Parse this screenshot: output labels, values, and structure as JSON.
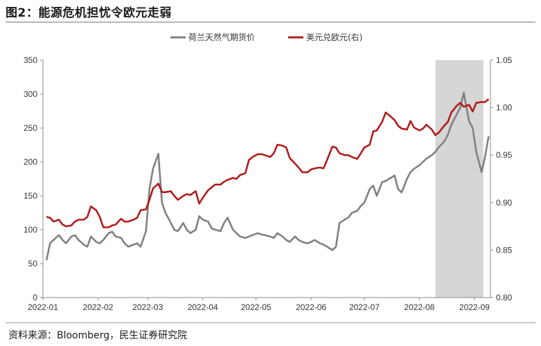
{
  "title": "图2：能源危机担忧令欧元走弱",
  "source": "资料来源：Bloomberg，民生证券研究院",
  "chart_data": {
    "type": "line",
    "x_tick_labels": [
      "2022-01",
      "2022-02",
      "2022-03",
      "2022-04",
      "2022-05",
      "2022-06",
      "2022-07",
      "2022-08",
      "2022-09"
    ],
    "y_left": {
      "range": [
        0,
        350
      ],
      "ticks": [
        0,
        50,
        100,
        150,
        200,
        250,
        300,
        350
      ]
    },
    "y_right": {
      "range": [
        0.8,
        1.05
      ],
      "ticks": [
        "0.80",
        "0.85",
        "0.90",
        "0.95",
        "1.00",
        "1.05"
      ]
    },
    "shaded_region": {
      "from": "2022-08-10",
      "to": "2022-09-06"
    },
    "legend_position": "top-center",
    "colors": {
      "gas": "#808080",
      "eurusd": "#b01c1c",
      "shade": "#d6d6d6"
    },
    "series": [
      {
        "name": "荷兰天然气期货价",
        "axis": "left",
        "points": [
          [
            "2022-01-03",
            55
          ],
          [
            "2022-01-05",
            80
          ],
          [
            "2022-01-07",
            85
          ],
          [
            "2022-01-10",
            92
          ],
          [
            "2022-01-12",
            85
          ],
          [
            "2022-01-14",
            80
          ],
          [
            "2022-01-17",
            90
          ],
          [
            "2022-01-19",
            92
          ],
          [
            "2022-01-21",
            85
          ],
          [
            "2022-01-24",
            78
          ],
          [
            "2022-01-26",
            75
          ],
          [
            "2022-01-28",
            90
          ],
          [
            "2022-01-31",
            82
          ],
          [
            "2022-02-02",
            80
          ],
          [
            "2022-02-04",
            85
          ],
          [
            "2022-02-07",
            95
          ],
          [
            "2022-02-09",
            97
          ],
          [
            "2022-02-11",
            90
          ],
          [
            "2022-02-14",
            88
          ],
          [
            "2022-02-16",
            80
          ],
          [
            "2022-02-18",
            75
          ],
          [
            "2022-02-21",
            78
          ],
          [
            "2022-02-23",
            80
          ],
          [
            "2022-02-25",
            75
          ],
          [
            "2022-02-28",
            98
          ],
          [
            "2022-03-02",
            160
          ],
          [
            "2022-03-04",
            190
          ],
          [
            "2022-03-07",
            212
          ],
          [
            "2022-03-09",
            140
          ],
          [
            "2022-03-11",
            125
          ],
          [
            "2022-03-14",
            110
          ],
          [
            "2022-03-16",
            100
          ],
          [
            "2022-03-18",
            98
          ],
          [
            "2022-03-21",
            110
          ],
          [
            "2022-03-23",
            100
          ],
          [
            "2022-03-25",
            95
          ],
          [
            "2022-03-28",
            100
          ],
          [
            "2022-03-30",
            120
          ],
          [
            "2022-04-01",
            115
          ],
          [
            "2022-04-04",
            112
          ],
          [
            "2022-04-06",
            102
          ],
          [
            "2022-04-08",
            100
          ],
          [
            "2022-04-11",
            98
          ],
          [
            "2022-04-13",
            110
          ],
          [
            "2022-04-15",
            118
          ],
          [
            "2022-04-18",
            100
          ],
          [
            "2022-04-20",
            95
          ],
          [
            "2022-04-22",
            90
          ],
          [
            "2022-04-25",
            88
          ],
          [
            "2022-04-27",
            90
          ],
          [
            "2022-04-29",
            92
          ],
          [
            "2022-05-02",
            95
          ],
          [
            "2022-05-04",
            93
          ],
          [
            "2022-05-06",
            92
          ],
          [
            "2022-05-09",
            90
          ],
          [
            "2022-05-11",
            88
          ],
          [
            "2022-05-13",
            95
          ],
          [
            "2022-05-16",
            90
          ],
          [
            "2022-05-18",
            85
          ],
          [
            "2022-05-20",
            82
          ],
          [
            "2022-05-23",
            90
          ],
          [
            "2022-05-25",
            85
          ],
          [
            "2022-05-27",
            82
          ],
          [
            "2022-05-30",
            80
          ],
          [
            "2022-06-01",
            82
          ],
          [
            "2022-06-03",
            85
          ],
          [
            "2022-06-06",
            80
          ],
          [
            "2022-06-08",
            78
          ],
          [
            "2022-06-10",
            75
          ],
          [
            "2022-06-13",
            70
          ],
          [
            "2022-06-15",
            75
          ],
          [
            "2022-06-17",
            110
          ],
          [
            "2022-06-20",
            115
          ],
          [
            "2022-06-22",
            118
          ],
          [
            "2022-06-24",
            125
          ],
          [
            "2022-06-27",
            128
          ],
          [
            "2022-06-29",
            135
          ],
          [
            "2022-07-01",
            140
          ],
          [
            "2022-07-04",
            160
          ],
          [
            "2022-07-06",
            165
          ],
          [
            "2022-07-08",
            150
          ],
          [
            "2022-07-11",
            170
          ],
          [
            "2022-07-13",
            172
          ],
          [
            "2022-07-15",
            175
          ],
          [
            "2022-07-18",
            180
          ],
          [
            "2022-07-20",
            160
          ],
          [
            "2022-07-22",
            155
          ],
          [
            "2022-07-25",
            175
          ],
          [
            "2022-07-27",
            185
          ],
          [
            "2022-07-29",
            190
          ],
          [
            "2022-08-01",
            195
          ],
          [
            "2022-08-03",
            200
          ],
          [
            "2022-08-05",
            205
          ],
          [
            "2022-08-08",
            210
          ],
          [
            "2022-08-10",
            215
          ],
          [
            "2022-08-12",
            222
          ],
          [
            "2022-08-15",
            230
          ],
          [
            "2022-08-17",
            240
          ],
          [
            "2022-08-19",
            255
          ],
          [
            "2022-08-22",
            270
          ],
          [
            "2022-08-24",
            280
          ],
          [
            "2022-08-26",
            302
          ],
          [
            "2022-08-29",
            260
          ],
          [
            "2022-08-31",
            250
          ],
          [
            "2022-09-02",
            215
          ],
          [
            "2022-09-05",
            185
          ],
          [
            "2022-09-07",
            208
          ],
          [
            "2022-09-09",
            238
          ]
        ]
      },
      {
        "name": "美元兑欧元(右)",
        "axis": "right",
        "points": [
          [
            "2022-01-03",
            0.885
          ],
          [
            "2022-01-05",
            0.884
          ],
          [
            "2022-01-07",
            0.88
          ],
          [
            "2022-01-10",
            0.882
          ],
          [
            "2022-01-12",
            0.877
          ],
          [
            "2022-01-14",
            0.875
          ],
          [
            "2022-01-17",
            0.876
          ],
          [
            "2022-01-19",
            0.88
          ],
          [
            "2022-01-21",
            0.882
          ],
          [
            "2022-01-24",
            0.882
          ],
          [
            "2022-01-26",
            0.885
          ],
          [
            "2022-01-28",
            0.896
          ],
          [
            "2022-01-31",
            0.892
          ],
          [
            "2022-02-02",
            0.885
          ],
          [
            "2022-02-04",
            0.874
          ],
          [
            "2022-02-07",
            0.874
          ],
          [
            "2022-02-09",
            0.876
          ],
          [
            "2022-02-11",
            0.877
          ],
          [
            "2022-02-14",
            0.883
          ],
          [
            "2022-02-16",
            0.88
          ],
          [
            "2022-02-18",
            0.88
          ],
          [
            "2022-02-21",
            0.882
          ],
          [
            "2022-02-23",
            0.884
          ],
          [
            "2022-02-25",
            0.892
          ],
          [
            "2022-02-28",
            0.893
          ],
          [
            "2022-03-02",
            0.903
          ],
          [
            "2022-03-04",
            0.915
          ],
          [
            "2022-03-07",
            0.92
          ],
          [
            "2022-03-09",
            0.911
          ],
          [
            "2022-03-11",
            0.911
          ],
          [
            "2022-03-14",
            0.912
          ],
          [
            "2022-03-16",
            0.907
          ],
          [
            "2022-03-18",
            0.903
          ],
          [
            "2022-03-21",
            0.907
          ],
          [
            "2022-03-23",
            0.909
          ],
          [
            "2022-03-25",
            0.908
          ],
          [
            "2022-03-28",
            0.912
          ],
          [
            "2022-03-30",
            0.899
          ],
          [
            "2022-04-01",
            0.905
          ],
          [
            "2022-04-04",
            0.913
          ],
          [
            "2022-04-06",
            0.916
          ],
          [
            "2022-04-08",
            0.919
          ],
          [
            "2022-04-11",
            0.919
          ],
          [
            "2022-04-13",
            0.922
          ],
          [
            "2022-04-15",
            0.924
          ],
          [
            "2022-04-18",
            0.926
          ],
          [
            "2022-04-20",
            0.925
          ],
          [
            "2022-04-22",
            0.929
          ],
          [
            "2022-04-25",
            0.931
          ],
          [
            "2022-04-27",
            0.945
          ],
          [
            "2022-04-29",
            0.948
          ],
          [
            "2022-05-02",
            0.951
          ],
          [
            "2022-05-04",
            0.951
          ],
          [
            "2022-05-06",
            0.95
          ],
          [
            "2022-05-09",
            0.948
          ],
          [
            "2022-05-11",
            0.952
          ],
          [
            "2022-05-13",
            0.961
          ],
          [
            "2022-05-16",
            0.96
          ],
          [
            "2022-05-18",
            0.958
          ],
          [
            "2022-05-20",
            0.947
          ],
          [
            "2022-05-23",
            0.941
          ],
          [
            "2022-05-25",
            0.937
          ],
          [
            "2022-05-27",
            0.932
          ],
          [
            "2022-05-30",
            0.932
          ],
          [
            "2022-06-01",
            0.935
          ],
          [
            "2022-06-03",
            0.936
          ],
          [
            "2022-06-06",
            0.937
          ],
          [
            "2022-06-08",
            0.936
          ],
          [
            "2022-06-10",
            0.945
          ],
          [
            "2022-06-13",
            0.959
          ],
          [
            "2022-06-15",
            0.958
          ],
          [
            "2022-06-17",
            0.952
          ],
          [
            "2022-06-20",
            0.95
          ],
          [
            "2022-06-22",
            0.95
          ],
          [
            "2022-06-24",
            0.948
          ],
          [
            "2022-06-27",
            0.946
          ],
          [
            "2022-06-29",
            0.952
          ],
          [
            "2022-07-01",
            0.958
          ],
          [
            "2022-07-04",
            0.961
          ],
          [
            "2022-07-06",
            0.975
          ],
          [
            "2022-07-08",
            0.976
          ],
          [
            "2022-07-11",
            0.985
          ],
          [
            "2022-07-13",
            0.995
          ],
          [
            "2022-07-15",
            0.992
          ],
          [
            "2022-07-18",
            0.987
          ],
          [
            "2022-07-20",
            0.981
          ],
          [
            "2022-07-22",
            0.978
          ],
          [
            "2022-07-25",
            0.977
          ],
          [
            "2022-07-27",
            0.986
          ],
          [
            "2022-07-29",
            0.979
          ],
          [
            "2022-08-01",
            0.976
          ],
          [
            "2022-08-03",
            0.978
          ],
          [
            "2022-08-05",
            0.982
          ],
          [
            "2022-08-08",
            0.977
          ],
          [
            "2022-08-10",
            0.971
          ],
          [
            "2022-08-12",
            0.974
          ],
          [
            "2022-08-15",
            0.981
          ],
          [
            "2022-08-17",
            0.985
          ],
          [
            "2022-08-19",
            0.995
          ],
          [
            "2022-08-22",
            1.002
          ],
          [
            "2022-08-24",
            1.005
          ],
          [
            "2022-08-26",
            1.001
          ],
          [
            "2022-08-29",
            1.003
          ],
          [
            "2022-08-31",
            0.996
          ],
          [
            "2022-09-02",
            1.005
          ],
          [
            "2022-09-05",
            1.006
          ],
          [
            "2022-09-07",
            1.006
          ],
          [
            "2022-09-09",
            1.009
          ]
        ]
      }
    ]
  }
}
